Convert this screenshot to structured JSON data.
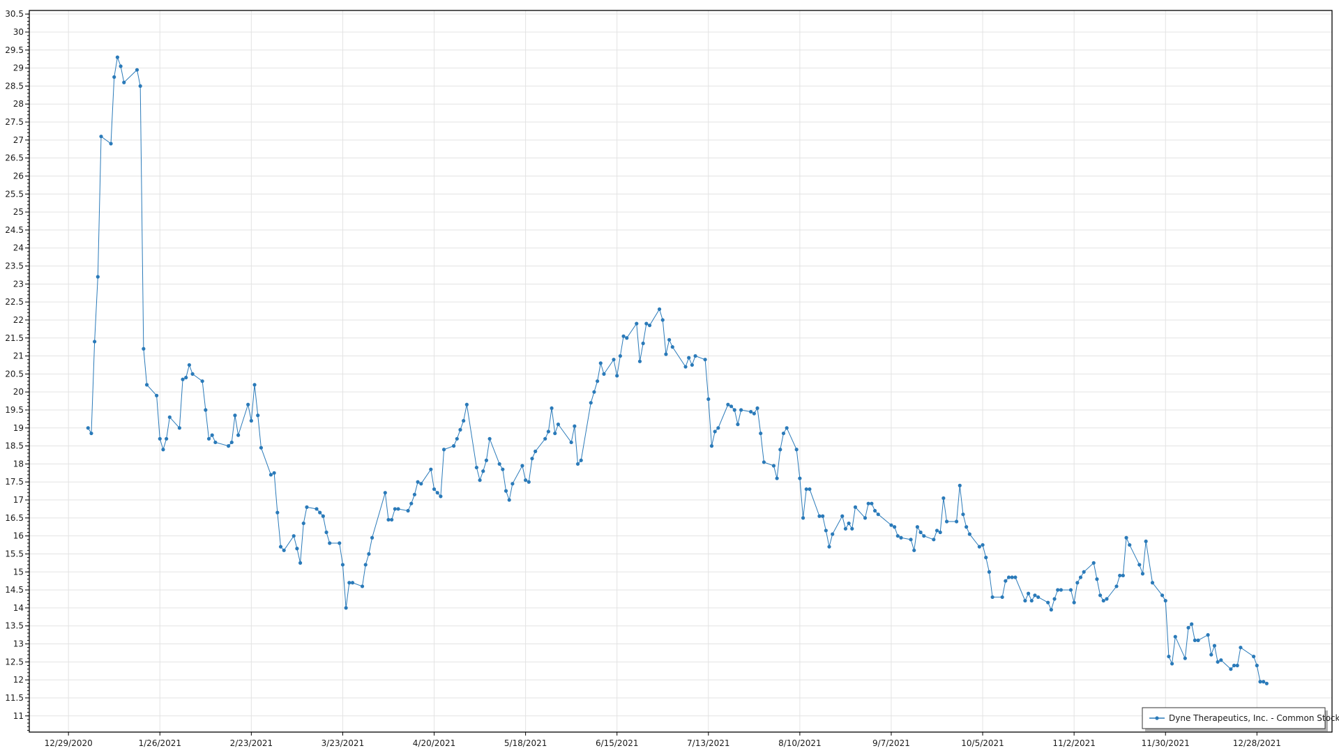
{
  "chart_data": {
    "type": "line",
    "title": "",
    "xlabel": "",
    "ylabel": "",
    "xlim": [
      "12/17/2020",
      "1/20/2022"
    ],
    "ylim": [
      10.55,
      30.6
    ],
    "grid": true,
    "legend_position": "bottom-right",
    "line_color": "#2a7ab9",
    "x_tick_labels": [
      "12/29/2020",
      "1/26/2021",
      "2/23/2021",
      "3/23/2021",
      "4/20/2021",
      "5/18/2021",
      "6/15/2021",
      "7/13/2021",
      "8/10/2021",
      "9/7/2021",
      "10/5/2021",
      "11/2/2021",
      "11/30/2021",
      "12/28/2021"
    ],
    "y_tick_labels": [
      "11",
      "11.5",
      "12",
      "12.5",
      "13",
      "13.5",
      "14",
      "14.5",
      "15",
      "15.5",
      "16",
      "16.5",
      "17",
      "17.5",
      "18",
      "18.5",
      "19",
      "19.5",
      "20",
      "20.5",
      "21",
      "21.5",
      "22",
      "22.5",
      "23",
      "23.5",
      "24",
      "24.5",
      "25",
      "25.5",
      "26",
      "26.5",
      "27",
      "27.5",
      "28",
      "28.5",
      "29",
      "29.5",
      "30",
      "30.5"
    ],
    "series": [
      {
        "name": "Dyne Therapeutics, Inc. - Common Stock",
        "points": [
          [
            "1/4/2021",
            19.0
          ],
          [
            "1/5/2021",
            18.85
          ],
          [
            "1/6/2021",
            21.4
          ],
          [
            "1/7/2021",
            23.2
          ],
          [
            "1/8/2021",
            27.1
          ],
          [
            "1/11/2021",
            26.9
          ],
          [
            "1/12/2021",
            28.75
          ],
          [
            "1/13/2021",
            29.3
          ],
          [
            "1/14/2021",
            29.05
          ],
          [
            "1/15/2021",
            28.6
          ],
          [
            "1/19/2021",
            28.95
          ],
          [
            "1/20/2021",
            28.5
          ],
          [
            "1/21/2021",
            21.2
          ],
          [
            "1/22/2021",
            20.2
          ],
          [
            "1/25/2021",
            19.9
          ],
          [
            "1/26/2021",
            18.7
          ],
          [
            "1/27/2021",
            18.4
          ],
          [
            "1/28/2021",
            18.7
          ],
          [
            "1/29/2021",
            19.3
          ],
          [
            "2/1/2021",
            19.0
          ],
          [
            "2/2/2021",
            20.35
          ],
          [
            "2/3/2021",
            20.4
          ],
          [
            "2/4/2021",
            20.75
          ],
          [
            "2/5/2021",
            20.5
          ],
          [
            "2/8/2021",
            20.3
          ],
          [
            "2/9/2021",
            19.5
          ],
          [
            "2/10/2021",
            18.7
          ],
          [
            "2/11/2021",
            18.8
          ],
          [
            "2/12/2021",
            18.6
          ],
          [
            "2/16/2021",
            18.5
          ],
          [
            "2/17/2021",
            18.6
          ],
          [
            "2/18/2021",
            19.35
          ],
          [
            "2/19/2021",
            18.8
          ],
          [
            "2/22/2021",
            19.65
          ],
          [
            "2/23/2021",
            19.2
          ],
          [
            "2/24/2021",
            20.2
          ],
          [
            "2/25/2021",
            19.35
          ],
          [
            "2/26/2021",
            18.45
          ],
          [
            "3/1/2021",
            17.7
          ],
          [
            "3/2/2021",
            17.75
          ],
          [
            "3/3/2021",
            16.65
          ],
          [
            "3/4/2021",
            15.7
          ],
          [
            "3/5/2021",
            15.6
          ],
          [
            "3/8/2021",
            16.0
          ],
          [
            "3/9/2021",
            15.65
          ],
          [
            "3/10/2021",
            15.25
          ],
          [
            "3/11/2021",
            16.35
          ],
          [
            "3/12/2021",
            16.8
          ],
          [
            "3/15/2021",
            16.75
          ],
          [
            "3/16/2021",
            16.65
          ],
          [
            "3/17/2021",
            16.55
          ],
          [
            "3/18/2021",
            16.1
          ],
          [
            "3/19/2021",
            15.8
          ],
          [
            "3/22/2021",
            15.8
          ],
          [
            "3/23/2021",
            15.2
          ],
          [
            "3/24/2021",
            14.0
          ],
          [
            "3/25/2021",
            14.7
          ],
          [
            "3/26/2021",
            14.7
          ],
          [
            "3/29/2021",
            14.6
          ],
          [
            "3/30/2021",
            15.2
          ],
          [
            "3/31/2021",
            15.5
          ],
          [
            "4/1/2021",
            15.95
          ],
          [
            "4/5/2021",
            17.2
          ],
          [
            "4/6/2021",
            16.45
          ],
          [
            "4/7/2021",
            16.45
          ],
          [
            "4/8/2021",
            16.75
          ],
          [
            "4/9/2021",
            16.75
          ],
          [
            "4/12/2021",
            16.7
          ],
          [
            "4/13/2021",
            16.9
          ],
          [
            "4/14/2021",
            17.15
          ],
          [
            "4/15/2021",
            17.5
          ],
          [
            "4/16/2021",
            17.45
          ],
          [
            "4/19/2021",
            17.85
          ],
          [
            "4/20/2021",
            17.3
          ],
          [
            "4/21/2021",
            17.2
          ],
          [
            "4/22/2021",
            17.1
          ],
          [
            "4/23/2021",
            18.4
          ],
          [
            "4/26/2021",
            18.5
          ],
          [
            "4/27/2021",
            18.7
          ],
          [
            "4/28/2021",
            18.95
          ],
          [
            "4/29/2021",
            19.2
          ],
          [
            "4/30/2021",
            19.65
          ],
          [
            "5/3/2021",
            17.9
          ],
          [
            "5/4/2021",
            17.55
          ],
          [
            "5/5/2021",
            17.8
          ],
          [
            "5/6/2021",
            18.1
          ],
          [
            "5/7/2021",
            18.7
          ],
          [
            "5/10/2021",
            18.0
          ],
          [
            "5/11/2021",
            17.85
          ],
          [
            "5/12/2021",
            17.25
          ],
          [
            "5/13/2021",
            17.0
          ],
          [
            "5/14/2021",
            17.45
          ],
          [
            "5/17/2021",
            17.95
          ],
          [
            "5/18/2021",
            17.55
          ],
          [
            "5/19/2021",
            17.5
          ],
          [
            "5/20/2021",
            18.15
          ],
          [
            "5/21/2021",
            18.35
          ],
          [
            "5/24/2021",
            18.7
          ],
          [
            "5/25/2021",
            18.9
          ],
          [
            "5/26/2021",
            19.55
          ],
          [
            "5/27/2021",
            18.85
          ],
          [
            "5/28/2021",
            19.1
          ],
          [
            "6/1/2021",
            18.6
          ],
          [
            "6/2/2021",
            19.05
          ],
          [
            "6/3/2021",
            18.0
          ],
          [
            "6/4/2021",
            18.1
          ],
          [
            "6/7/2021",
            19.7
          ],
          [
            "6/8/2021",
            20.0
          ],
          [
            "6/9/2021",
            20.3
          ],
          [
            "6/10/2021",
            20.8
          ],
          [
            "6/11/2021",
            20.5
          ],
          [
            "6/14/2021",
            20.9
          ],
          [
            "6/15/2021",
            20.45
          ],
          [
            "6/16/2021",
            21.0
          ],
          [
            "6/17/2021",
            21.55
          ],
          [
            "6/18/2021",
            21.5
          ],
          [
            "6/21/2021",
            21.9
          ],
          [
            "6/22/2021",
            20.85
          ],
          [
            "6/23/2021",
            21.35
          ],
          [
            "6/24/2021",
            21.9
          ],
          [
            "6/25/2021",
            21.85
          ],
          [
            "6/28/2021",
            22.3
          ],
          [
            "6/29/2021",
            22.0
          ],
          [
            "6/30/2021",
            21.05
          ],
          [
            "7/1/2021",
            21.45
          ],
          [
            "7/2/2021",
            21.25
          ],
          [
            "7/6/2021",
            20.7
          ],
          [
            "7/7/2021",
            20.95
          ],
          [
            "7/8/2021",
            20.75
          ],
          [
            "7/9/2021",
            21.0
          ],
          [
            "7/12/2021",
            20.9
          ],
          [
            "7/13/2021",
            19.8
          ],
          [
            "7/14/2021",
            18.5
          ],
          [
            "7/15/2021",
            18.9
          ],
          [
            "7/16/2021",
            19.0
          ],
          [
            "7/19/2021",
            19.65
          ],
          [
            "7/20/2021",
            19.6
          ],
          [
            "7/21/2021",
            19.5
          ],
          [
            "7/22/2021",
            19.1
          ],
          [
            "7/23/2021",
            19.5
          ],
          [
            "7/26/2021",
            19.45
          ],
          [
            "7/27/2021",
            19.4
          ],
          [
            "7/28/2021",
            19.55
          ],
          [
            "7/29/2021",
            18.85
          ],
          [
            "7/30/2021",
            18.05
          ],
          [
            "8/2/2021",
            17.95
          ],
          [
            "8/3/2021",
            17.6
          ],
          [
            "8/4/2021",
            18.4
          ],
          [
            "8/5/2021",
            18.85
          ],
          [
            "8/6/2021",
            19.0
          ],
          [
            "8/9/2021",
            18.4
          ],
          [
            "8/10/2021",
            17.6
          ],
          [
            "8/11/2021",
            16.5
          ],
          [
            "8/12/2021",
            17.3
          ],
          [
            "8/13/2021",
            17.3
          ],
          [
            "8/16/2021",
            16.55
          ],
          [
            "8/17/2021",
            16.55
          ],
          [
            "8/18/2021",
            16.15
          ],
          [
            "8/19/2021",
            15.7
          ],
          [
            "8/20/2021",
            16.05
          ],
          [
            "8/23/2021",
            16.55
          ],
          [
            "8/24/2021",
            16.2
          ],
          [
            "8/25/2021",
            16.35
          ],
          [
            "8/26/2021",
            16.2
          ],
          [
            "8/27/2021",
            16.8
          ],
          [
            "8/30/2021",
            16.5
          ],
          [
            "8/31/2021",
            16.9
          ],
          [
            "9/1/2021",
            16.9
          ],
          [
            "9/2/2021",
            16.7
          ],
          [
            "9/3/2021",
            16.6
          ],
          [
            "9/7/2021",
            16.3
          ],
          [
            "9/8/2021",
            16.25
          ],
          [
            "9/9/2021",
            16.0
          ],
          [
            "9/10/2021",
            15.95
          ],
          [
            "9/13/2021",
            15.9
          ],
          [
            "9/14/2021",
            15.6
          ],
          [
            "9/15/2021",
            16.25
          ],
          [
            "9/16/2021",
            16.1
          ],
          [
            "9/17/2021",
            16.0
          ],
          [
            "9/20/2021",
            15.9
          ],
          [
            "9/21/2021",
            16.15
          ],
          [
            "9/22/2021",
            16.1
          ],
          [
            "9/23/2021",
            17.05
          ],
          [
            "9/24/2021",
            16.4
          ],
          [
            "9/27/2021",
            16.4
          ],
          [
            "9/28/2021",
            17.4
          ],
          [
            "9/29/2021",
            16.6
          ],
          [
            "9/30/2021",
            16.25
          ],
          [
            "10/1/2021",
            16.05
          ],
          [
            "10/4/2021",
            15.7
          ],
          [
            "10/5/2021",
            15.75
          ],
          [
            "10/6/2021",
            15.4
          ],
          [
            "10/7/2021",
            15.0
          ],
          [
            "10/8/2021",
            14.3
          ],
          [
            "10/11/2021",
            14.3
          ],
          [
            "10/12/2021",
            14.75
          ],
          [
            "10/13/2021",
            14.85
          ],
          [
            "10/14/2021",
            14.85
          ],
          [
            "10/15/2021",
            14.85
          ],
          [
            "10/18/2021",
            14.2
          ],
          [
            "10/19/2021",
            14.4
          ],
          [
            "10/20/2021",
            14.2
          ],
          [
            "10/21/2021",
            14.35
          ],
          [
            "10/22/2021",
            14.3
          ],
          [
            "10/25/2021",
            14.15
          ],
          [
            "10/26/2021",
            13.95
          ],
          [
            "10/27/2021",
            14.25
          ],
          [
            "10/28/2021",
            14.5
          ],
          [
            "10/29/2021",
            14.5
          ],
          [
            "11/1/2021",
            14.5
          ],
          [
            "11/2/2021",
            14.15
          ],
          [
            "11/3/2021",
            14.7
          ],
          [
            "11/4/2021",
            14.85
          ],
          [
            "11/5/2021",
            15.0
          ],
          [
            "11/8/2021",
            15.25
          ],
          [
            "11/9/2021",
            14.8
          ],
          [
            "11/10/2021",
            14.35
          ],
          [
            "11/11/2021",
            14.2
          ],
          [
            "11/12/2021",
            14.25
          ],
          [
            "11/15/2021",
            14.6
          ],
          [
            "11/16/2021",
            14.9
          ],
          [
            "11/17/2021",
            14.9
          ],
          [
            "11/18/2021",
            15.95
          ],
          [
            "11/19/2021",
            15.75
          ],
          [
            "11/22/2021",
            15.2
          ],
          [
            "11/23/2021",
            14.95
          ],
          [
            "11/24/2021",
            15.85
          ],
          [
            "11/26/2021",
            14.7
          ],
          [
            "11/29/2021",
            14.35
          ],
          [
            "11/30/2021",
            14.2
          ],
          [
            "12/1/2021",
            12.65
          ],
          [
            "12/2/2021",
            12.45
          ],
          [
            "12/3/2021",
            13.2
          ],
          [
            "12/6/2021",
            12.6
          ],
          [
            "12/7/2021",
            13.45
          ],
          [
            "12/8/2021",
            13.55
          ],
          [
            "12/9/2021",
            13.1
          ],
          [
            "12/10/2021",
            13.1
          ],
          [
            "12/13/2021",
            13.25
          ],
          [
            "12/14/2021",
            12.7
          ],
          [
            "12/15/2021",
            12.95
          ],
          [
            "12/16/2021",
            12.5
          ],
          [
            "12/17/2021",
            12.55
          ],
          [
            "12/20/2021",
            12.3
          ],
          [
            "12/21/2021",
            12.4
          ],
          [
            "12/22/2021",
            12.4
          ],
          [
            "12/23/2021",
            12.9
          ],
          [
            "12/27/2021",
            12.65
          ],
          [
            "12/28/2021",
            12.4
          ],
          [
            "12/29/2021",
            11.95
          ],
          [
            "12/30/2021",
            11.95
          ],
          [
            "12/31/2021",
            11.9
          ]
        ]
      }
    ]
  },
  "legend": {
    "label": "Dyne Therapeutics, Inc. - Common Stock"
  }
}
